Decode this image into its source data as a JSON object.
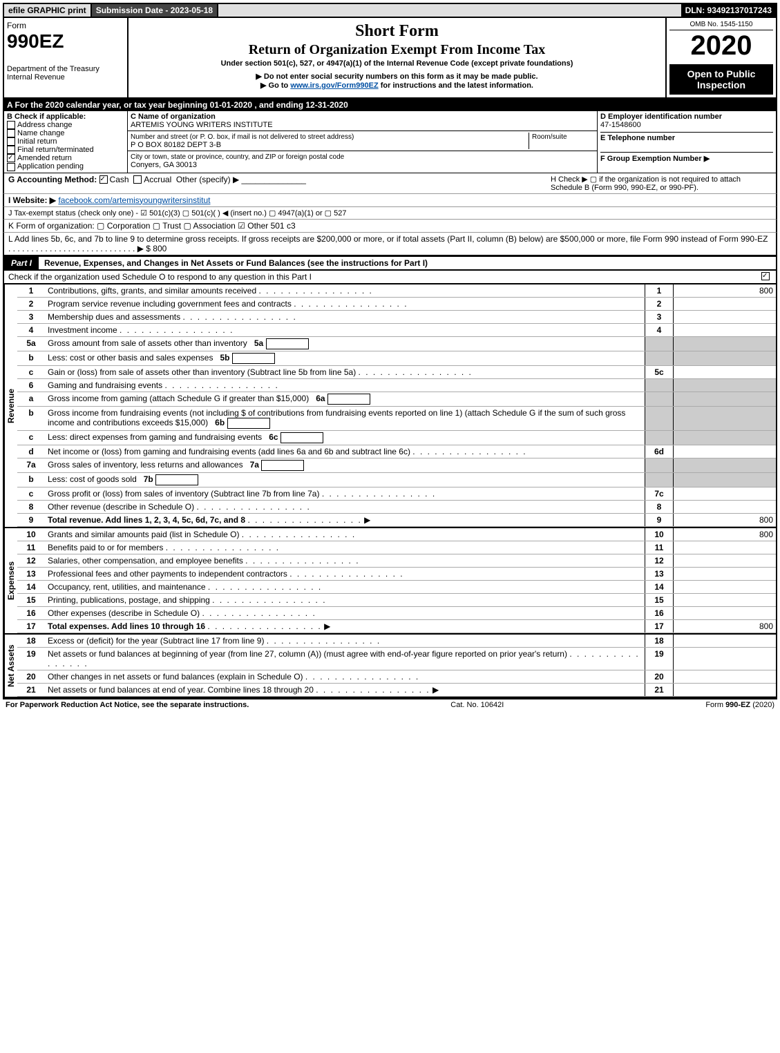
{
  "topbar": {
    "efile": "efile GRAPHIC print",
    "submission_label": "Submission Date - 2023-05-18",
    "dln": "DLN: 93492137017243"
  },
  "header": {
    "form_word": "Form",
    "form_code": "990EZ",
    "dept": "Department of the Treasury\nInternal Revenue",
    "short": "Short Form",
    "title": "Return of Organization Exempt From Income Tax",
    "under": "Under section 501(c), 527, or 4947(a)(1) of the Internal Revenue Code (except private foundations)",
    "warn": "▶ Do not enter social security numbers on this form as it may be made public.",
    "goto_pre": "▶ Go to ",
    "goto_link": "www.irs.gov/Form990EZ",
    "goto_post": " for instructions and the latest information.",
    "omb": "OMB No. 1545-1150",
    "year": "2020",
    "open": "Open to Public Inspection"
  },
  "sectionA": "A For the 2020 calendar year, or tax year beginning 01-01-2020 , and ending 12-31-2020",
  "boxB": {
    "heading": "B  Check if applicable:",
    "items": [
      {
        "label": "Address change",
        "checked": false
      },
      {
        "label": "Name change",
        "checked": false
      },
      {
        "label": "Initial return",
        "checked": false
      },
      {
        "label": "Final return/terminated",
        "checked": false
      },
      {
        "label": "Amended return",
        "checked": true
      },
      {
        "label": "Application pending",
        "checked": false
      }
    ]
  },
  "boxC": {
    "c_label": "C Name of organization",
    "c_val": "ARTEMIS YOUNG WRITERS INSTITUTE",
    "addr_label": "Number and street (or P. O. box, if mail is not delivered to street address)",
    "room_label": "Room/suite",
    "addr_val": "P O BOX 80182 DEPT 3-B",
    "city_label": "City or town, state or province, country, and ZIP or foreign postal code",
    "city_val": "Conyers, GA  30013"
  },
  "boxD": {
    "d_label": "D Employer identification number",
    "d_val": "47-1548600",
    "e_label": "E Telephone number",
    "f_label": "F Group Exemption Number  ▶"
  },
  "rowG": {
    "label": "G Accounting Method:",
    "cash": "Cash",
    "accrual": "Accrual",
    "other": "Other (specify) ▶"
  },
  "rowH": "H  Check ▶  ▢  if the organization is not required to attach Schedule B (Form 990, 990-EZ, or 990-PF).",
  "rowI": {
    "label": "I Website: ▶",
    "val": "facebook.com/artemisyoungwritersinstitut"
  },
  "rowJ": "J Tax-exempt status (check only one) - ☑ 501(c)(3)  ▢ 501(c)(  ) ◀ (insert no.)  ▢ 4947(a)(1) or  ▢ 527",
  "rowK": "K Form of organization:  ▢ Corporation  ▢ Trust  ▢ Association  ☑ Other 501 c3",
  "rowL": "L Add lines 5b, 6c, and 7b to line 9 to determine gross receipts. If gross receipts are $200,000 or more, or if total assets (Part II, column (B) below) are $500,000 or more, file Form 990 instead of Form 990-EZ  .  .  .  .  .  .  .  .  .  .  .  .  .  .  .  .  .  .  .  .  .  .  .  .  .  .  .  .  ▶ $ 800",
  "part1": {
    "label": "Part I",
    "title": "Revenue, Expenses, and Changes in Net Assets or Fund Balances (see the instructions for Part I)",
    "check": "Check if the organization used Schedule O to respond to any question in this Part I",
    "checked": true
  },
  "sideLabels": {
    "rev": "Revenue",
    "exp": "Expenses",
    "net": "Net Assets"
  },
  "lines": [
    {
      "n": "1",
      "t": "Contributions, gifts, grants, and similar amounts received",
      "r": "1",
      "v": "800"
    },
    {
      "n": "2",
      "t": "Program service revenue including government fees and contracts",
      "r": "2",
      "v": ""
    },
    {
      "n": "3",
      "t": "Membership dues and assessments",
      "r": "3",
      "v": ""
    },
    {
      "n": "4",
      "t": "Investment income",
      "r": "4",
      "v": ""
    },
    {
      "n": "5a",
      "t": "Gross amount from sale of assets other than inventory",
      "sub": "5a"
    },
    {
      "n": "b",
      "t": "Less: cost or other basis and sales expenses",
      "sub": "5b"
    },
    {
      "n": "c",
      "t": "Gain or (loss) from sale of assets other than inventory (Subtract line 5b from line 5a)",
      "r": "5c",
      "v": ""
    },
    {
      "n": "6",
      "t": "Gaming and fundraising events",
      "shade": true
    },
    {
      "n": "a",
      "t": "Gross income from gaming (attach Schedule G if greater than $15,000)",
      "sub": "6a"
    },
    {
      "n": "b",
      "t": "Gross income from fundraising events (not including $                of contributions from fundraising events reported on line 1) (attach Schedule G if the sum of such gross income and contributions exceeds $15,000)",
      "sub": "6b"
    },
    {
      "n": "c",
      "t": "Less: direct expenses from gaming and fundraising events",
      "sub": "6c"
    },
    {
      "n": "d",
      "t": "Net income or (loss) from gaming and fundraising events (add lines 6a and 6b and subtract line 6c)",
      "r": "6d",
      "v": ""
    },
    {
      "n": "7a",
      "t": "Gross sales of inventory, less returns and allowances",
      "sub": "7a"
    },
    {
      "n": "b",
      "t": "Less: cost of goods sold",
      "sub": "7b"
    },
    {
      "n": "c",
      "t": "Gross profit or (loss) from sales of inventory (Subtract line 7b from line 7a)",
      "r": "7c",
      "v": ""
    },
    {
      "n": "8",
      "t": "Other revenue (describe in Schedule O)",
      "r": "8",
      "v": ""
    },
    {
      "n": "9",
      "t": "Total revenue. Add lines 1, 2, 3, 4, 5c, 6d, 7c, and 8",
      "r": "9",
      "v": "800",
      "bold": true,
      "arrow": true
    }
  ],
  "expLines": [
    {
      "n": "10",
      "t": "Grants and similar amounts paid (list in Schedule O)",
      "r": "10",
      "v": "800"
    },
    {
      "n": "11",
      "t": "Benefits paid to or for members",
      "r": "11",
      "v": ""
    },
    {
      "n": "12",
      "t": "Salaries, other compensation, and employee benefits",
      "r": "12",
      "v": ""
    },
    {
      "n": "13",
      "t": "Professional fees and other payments to independent contractors",
      "r": "13",
      "v": ""
    },
    {
      "n": "14",
      "t": "Occupancy, rent, utilities, and maintenance",
      "r": "14",
      "v": ""
    },
    {
      "n": "15",
      "t": "Printing, publications, postage, and shipping",
      "r": "15",
      "v": ""
    },
    {
      "n": "16",
      "t": "Other expenses (describe in Schedule O)",
      "r": "16",
      "v": ""
    },
    {
      "n": "17",
      "t": "Total expenses. Add lines 10 through 16",
      "r": "17",
      "v": "800",
      "bold": true,
      "arrow": true
    }
  ],
  "netLines": [
    {
      "n": "18",
      "t": "Excess or (deficit) for the year (Subtract line 17 from line 9)",
      "r": "18",
      "v": ""
    },
    {
      "n": "19",
      "t": "Net assets or fund balances at beginning of year (from line 27, column (A)) (must agree with end-of-year figure reported on prior year's return)",
      "r": "19",
      "v": ""
    },
    {
      "n": "20",
      "t": "Other changes in net assets or fund balances (explain in Schedule O)",
      "r": "20",
      "v": ""
    },
    {
      "n": "21",
      "t": "Net assets or fund balances at end of year. Combine lines 18 through 20",
      "r": "21",
      "v": "",
      "arrow": true
    }
  ],
  "footer": {
    "left": "For Paperwork Reduction Act Notice, see the separate instructions.",
    "mid": "Cat. No. 10642I",
    "right": "Form 990-EZ (2020)"
  }
}
